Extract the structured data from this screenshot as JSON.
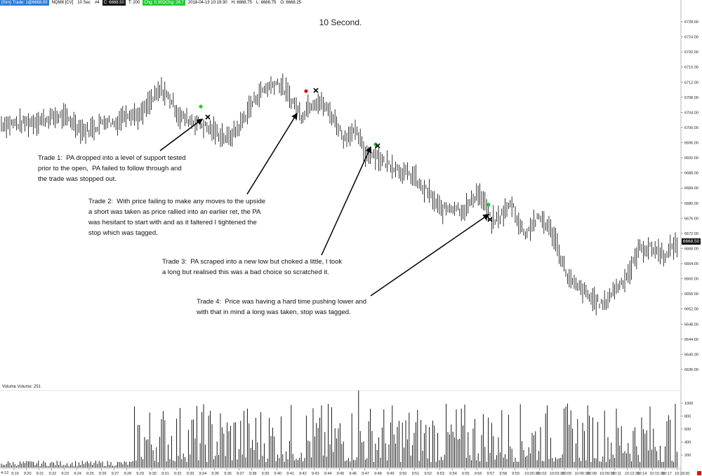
{
  "header": {
    "tab_sim": "[Sim]",
    "trade_label": "Trade: 1@6668.00",
    "instrument": "NQM8 [CV]",
    "interval": "10 Sec",
    "tick_label": "#4",
    "close_label": "C: 6668.50",
    "ticks_label": "T: 200",
    "change_label": "Chg: 0.30ΩChg: 28.7",
    "datetime": "2018-04-13 10:19:30",
    "high_label": "H: 6668.75",
    "low_label": "L: 6666.75",
    "open_label": "O: 6668.25"
  },
  "chart_title": "10 Second.",
  "current_price": "6668.50",
  "volume_label": "Volume  Volume: 251",
  "annotations": [
    {
      "text": "Trade 1:  PA dropped into a level of support tested\nprior to the open,  PA failed to follow through and\nthe trade was stopped out."
    },
    {
      "text": "Trade 2:  With price failing to make any moves to the upside\na short was taken as price rallied into an earlier ret, the PA\nwas hesitant to start with and as it faltered I tightened the\nstop which was tagged."
    },
    {
      "text": "Trade 3:  PA scraped into a new low but choked a little, I took\na long but realised this was a bad choice so scratched it."
    },
    {
      "text": "Trade 4:  Price was having a hard time pushing lower and\nwith that in mind a long was taken, stop was tagged."
    }
  ],
  "chart_data": {
    "type": "line",
    "price_axis_ticks": [
      "6728.00",
      "6724.00",
      "6720.00",
      "6716.00",
      "6712.00",
      "6708.00",
      "6704.00",
      "6700.00",
      "6696.00",
      "6692.00",
      "6688.00",
      "6684.00",
      "6680.00",
      "6676.00",
      "6672.00",
      "6668.00",
      "6664.00",
      "6660.00",
      "6656.00",
      "6652.00",
      "6648.00",
      "6644.00",
      "6640.00",
      "6636.00"
    ],
    "volume_axis_ticks": [
      "1000",
      "800",
      "600",
      "400",
      "200"
    ],
    "time_labels": [
      "9:19",
      "9:20",
      "9:21",
      "9:22",
      "9:23",
      "9:24",
      "9:25",
      "9:26",
      "9:27",
      "9:28",
      "9:29",
      "9:30",
      "9:31",
      "9:32",
      "9:33",
      "9:34",
      "9:35",
      "9:36",
      "9:37",
      "9:38",
      "9:39",
      "9:40",
      "9:41",
      "9:42",
      "9:43",
      "9:44",
      "9:45",
      "9:46",
      "9:47",
      "9:48",
      "9:49",
      "9:50",
      "9:51",
      "9:52",
      "9:53",
      "9:54",
      "9:55",
      "9:56",
      "9:57",
      "9:58",
      "9:59",
      "10:00:30",
      "10:02",
      "10:03:30",
      "10:05",
      "10:06:30",
      "10:08",
      "10:09:30",
      "10:11",
      "10:12:30",
      "10:14",
      "10:15:30",
      "10:17",
      "10:18:30"
    ],
    "date_label": "4-13",
    "price_path": [
      [
        0,
        6701
      ],
      [
        30,
        6701
      ],
      [
        60,
        6702
      ],
      [
        85,
        6703
      ],
      [
        100,
        6702
      ],
      [
        120,
        6699
      ],
      [
        135,
        6700
      ],
      [
        150,
        6702
      ],
      [
        165,
        6701
      ],
      [
        180,
        6704
      ],
      [
        200,
        6703
      ],
      [
        215,
        6707
      ],
      [
        230,
        6710
      ],
      [
        245,
        6707
      ],
      [
        255,
        6703
      ],
      [
        270,
        6702
      ],
      [
        285,
        6701
      ],
      [
        295,
        6700
      ],
      [
        305,
        6699
      ],
      [
        315,
        6698
      ],
      [
        325,
        6697
      ],
      [
        340,
        6700
      ],
      [
        355,
        6705
      ],
      [
        365,
        6708
      ],
      [
        375,
        6710
      ],
      [
        385,
        6711
      ],
      [
        395,
        6712
      ],
      [
        405,
        6710
      ],
      [
        420,
        6706
      ],
      [
        430,
        6703
      ],
      [
        440,
        6706
      ],
      [
        450,
        6707
      ],
      [
        460,
        6706
      ],
      [
        470,
        6704
      ],
      [
        480,
        6701
      ],
      [
        490,
        6697
      ],
      [
        500,
        6699
      ],
      [
        510,
        6698
      ],
      [
        520,
        6693
      ],
      [
        535,
        6693
      ],
      [
        545,
        6691
      ],
      [
        560,
        6690
      ],
      [
        575,
        6688
      ],
      [
        590,
        6687
      ],
      [
        600,
        6684
      ],
      [
        610,
        6683
      ],
      [
        620,
        6680
      ],
      [
        630,
        6678
      ],
      [
        640,
        6679
      ],
      [
        650,
        6679
      ],
      [
        660,
        6678
      ],
      [
        670,
        6680
      ],
      [
        680,
        6683
      ],
      [
        690,
        6680
      ],
      [
        700,
        6675
      ],
      [
        710,
        6676
      ],
      [
        720,
        6678
      ],
      [
        730,
        6680
      ],
      [
        740,
        6674
      ],
      [
        750,
        6672
      ],
      [
        760,
        6675
      ],
      [
        770,
        6676
      ],
      [
        780,
        6674
      ],
      [
        790,
        6671
      ],
      [
        800,
        6665
      ],
      [
        810,
        6660
      ],
      [
        820,
        6658
      ],
      [
        830,
        6657
      ],
      [
        840,
        6655
      ],
      [
        850,
        6654
      ],
      [
        860,
        6653
      ],
      [
        870,
        6656
      ],
      [
        880,
        6658
      ],
      [
        890,
        6660
      ],
      [
        900,
        6663
      ],
      [
        910,
        6668
      ],
      [
        920,
        6668
      ],
      [
        930,
        6668
      ],
      [
        940,
        6667
      ],
      [
        950,
        6666
      ],
      [
        958,
        6669
      ],
      [
        965,
        6668.5
      ]
    ],
    "trade_markers": [
      {
        "trade": 1,
        "entry_color": "#22cc33",
        "exit_symbol": "x"
      },
      {
        "trade": 2,
        "entry_color": "#e01010",
        "exit_symbol": "x"
      },
      {
        "trade": 3,
        "entry_color": "#22cc33",
        "exit_symbol": "x"
      },
      {
        "trade": 4,
        "entry_color": "#22cc33",
        "exit_symbol": "x"
      }
    ],
    "xlabel": "",
    "ylabel": "",
    "grid": false
  }
}
